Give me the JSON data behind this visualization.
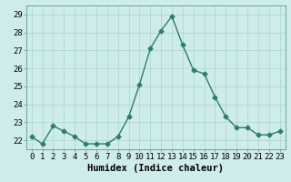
{
  "x": [
    0,
    1,
    2,
    3,
    4,
    5,
    6,
    7,
    8,
    9,
    10,
    11,
    12,
    13,
    14,
    15,
    16,
    17,
    18,
    19,
    20,
    21,
    22,
    23
  ],
  "y": [
    22.2,
    21.8,
    22.8,
    22.5,
    22.2,
    21.8,
    21.8,
    21.8,
    22.2,
    23.3,
    25.1,
    27.1,
    28.1,
    28.9,
    27.3,
    25.9,
    25.7,
    24.4,
    23.3,
    22.7,
    22.7,
    22.3,
    22.3,
    22.5
  ],
  "line_color": "#2d7d6e",
  "marker": "D",
  "marker_size": 2.5,
  "bg_color": "#ceecea",
  "grid_color": "#b0d8d5",
  "xlabel": "Humidex (Indice chaleur)",
  "ylim": [
    21.5,
    29.5
  ],
  "yticks": [
    22,
    23,
    24,
    25,
    26,
    27,
    28,
    29
  ],
  "xlim": [
    -0.5,
    23.5
  ],
  "xticks": [
    0,
    1,
    2,
    3,
    4,
    5,
    6,
    7,
    8,
    9,
    10,
    11,
    12,
    13,
    14,
    15,
    16,
    17,
    18,
    19,
    20,
    21,
    22,
    23
  ],
  "xlabel_fontsize": 7.5,
  "tick_fontsize": 6.5,
  "line_width": 1.0,
  "font_family": "monospace"
}
